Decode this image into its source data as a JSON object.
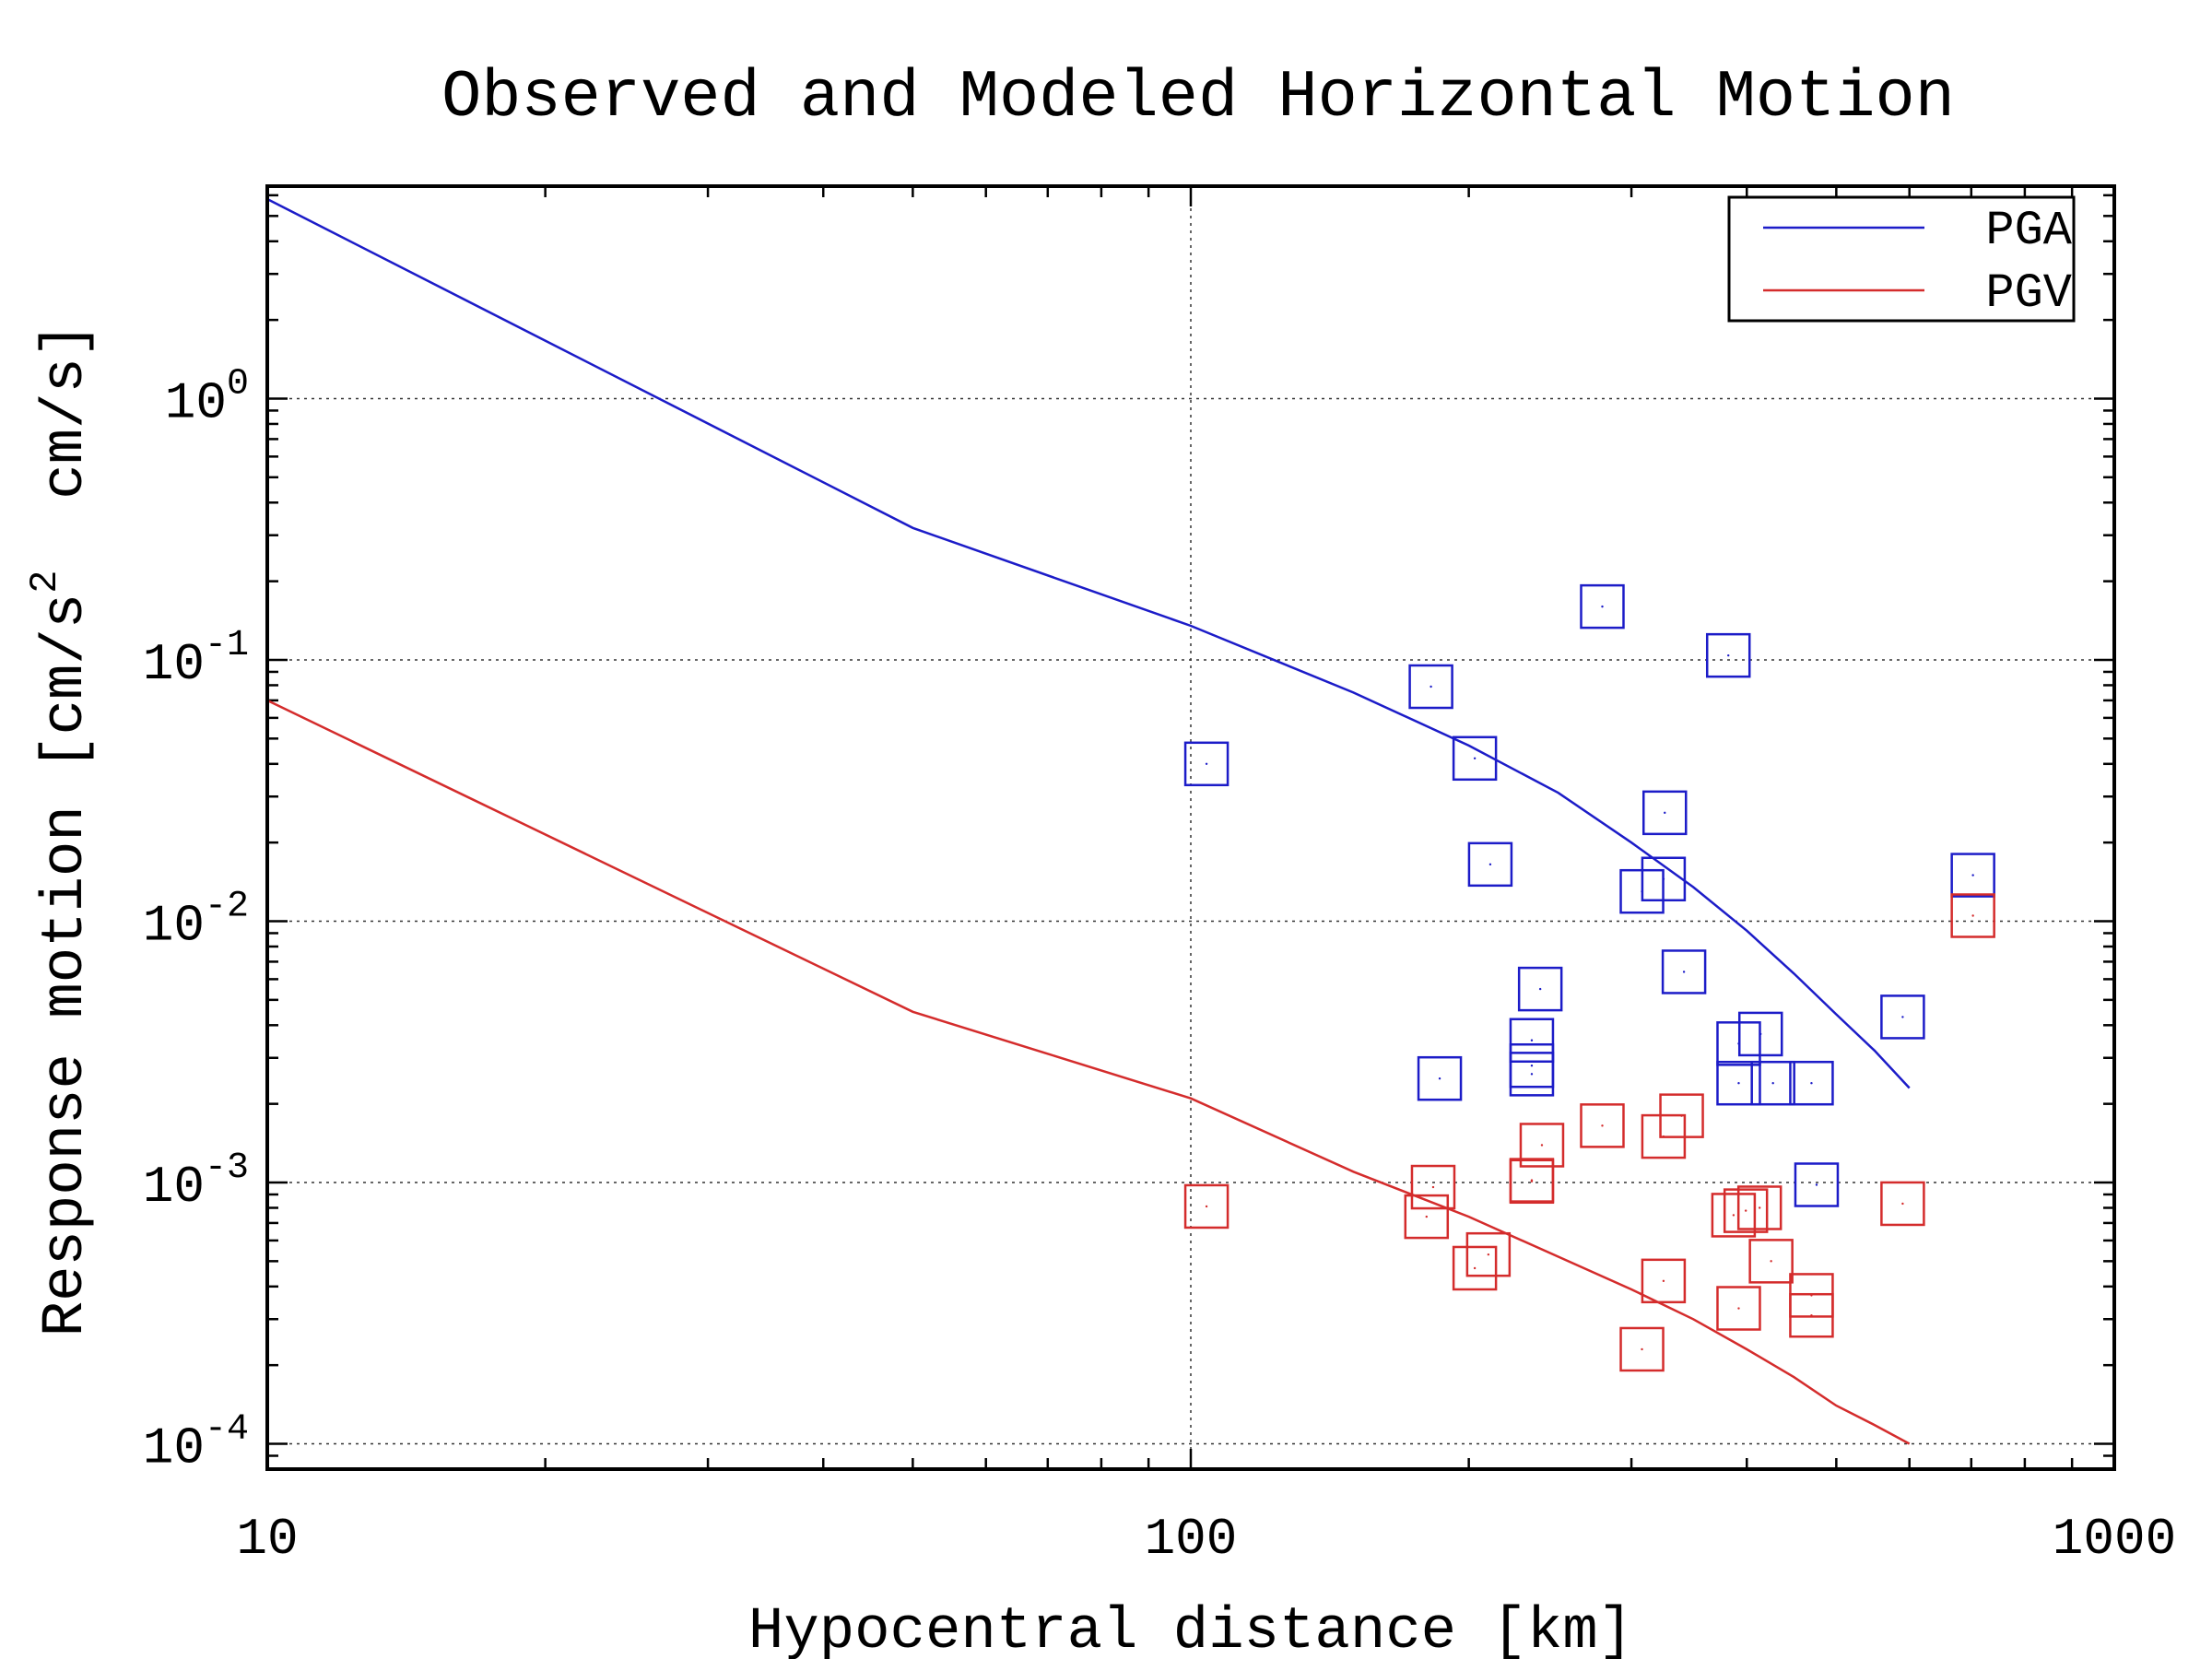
{
  "chart_data": {
    "type": "scatter",
    "title": "Observed and Modeled Horizontal Motion",
    "xlabel": "Hypocentral distance [km]",
    "ylabel": {
      "prefix": "Response motion [cm/s",
      "sup": "2",
      "suffix": "  cm/s]"
    },
    "xscale": "log",
    "yscale": "log",
    "xlim": [
      10,
      1000
    ],
    "ylim": [
      8e-05,
      6.5
    ],
    "x_ticks": [
      {
        "value": 10,
        "label": "10"
      },
      {
        "value": 100,
        "label": "100"
      },
      {
        "value": 1000,
        "label": "1000"
      }
    ],
    "y_ticks": [
      {
        "value": 1,
        "base": "10",
        "exp": "0"
      },
      {
        "value": 0.1,
        "base": "10",
        "exp": "-1"
      },
      {
        "value": 0.01,
        "base": "10",
        "exp": "-2"
      },
      {
        "value": 0.001,
        "base": "10",
        "exp": "-3"
      },
      {
        "value": 0.0001,
        "base": "10",
        "exp": "-4"
      }
    ],
    "grid": true,
    "legend_position": "top-right",
    "series": [
      {
        "name": "PGA",
        "color": "#1c1cc8",
        "line": [
          [
            10,
            5.8
          ],
          [
            50,
            0.32
          ],
          [
            100,
            0.135
          ],
          [
            150,
            0.075
          ],
          [
            200,
            0.047
          ],
          [
            250,
            0.031
          ],
          [
            300,
            0.02
          ],
          [
            350,
            0.0135
          ],
          [
            400,
            0.0092
          ],
          [
            450,
            0.0063
          ],
          [
            500,
            0.0044
          ],
          [
            550,
            0.0032
          ],
          [
            600,
            0.0023
          ]
        ],
        "points": [
          [
            104,
            0.04
          ],
          [
            182,
            0.079
          ],
          [
            203,
            0.042
          ],
          [
            211,
            0.0165
          ],
          [
            279,
            0.16
          ],
          [
            382,
            0.104
          ],
          [
            326,
            0.026
          ],
          [
            325,
            0.0145
          ],
          [
            308,
            0.013
          ],
          [
            342,
            0.0064
          ],
          [
            239,
            0.0055
          ],
          [
            234,
            0.0035
          ],
          [
            234,
            0.0028
          ],
          [
            234,
            0.0026
          ],
          [
            186,
            0.0025
          ],
          [
            392,
            0.0034
          ],
          [
            414,
            0.0037
          ],
          [
            392,
            0.0024
          ],
          [
            427,
            0.0024
          ],
          [
            470,
            0.0024
          ],
          [
            476,
            0.00098
          ],
          [
            590,
            0.0043
          ],
          [
            703,
            0.015
          ]
        ]
      },
      {
        "name": "PGV",
        "color": "#d42c2c",
        "line": [
          [
            10,
            0.07
          ],
          [
            50,
            0.0045
          ],
          [
            100,
            0.0021
          ],
          [
            150,
            0.0011
          ],
          [
            200,
            0.00074
          ],
          [
            250,
            0.00052
          ],
          [
            300,
            0.00039
          ],
          [
            350,
            0.0003
          ],
          [
            400,
            0.00023
          ],
          [
            450,
            0.00018
          ],
          [
            500,
            0.00014
          ],
          [
            550,
            0.000118
          ],
          [
            600,
            0.0001
          ]
        ],
        "points": [
          [
            104,
            0.00081
          ],
          [
            183,
            0.00096
          ],
          [
            180,
            0.00074
          ],
          [
            203,
            0.00047
          ],
          [
            210,
            0.00053
          ],
          [
            240,
            0.00139
          ],
          [
            234,
            0.00102
          ],
          [
            234,
            0.00101
          ],
          [
            279,
            0.00165
          ],
          [
            325,
            0.0015
          ],
          [
            340,
            0.0018
          ],
          [
            325,
            0.00042
          ],
          [
            308,
            0.00023
          ],
          [
            387,
            0.00075
          ],
          [
            399,
            0.00078
          ],
          [
            413,
            0.0008
          ],
          [
            425,
            0.0005
          ],
          [
            392,
            0.00033
          ],
          [
            470,
            0.00037
          ],
          [
            470,
            0.00031
          ],
          [
            590,
            0.00083
          ],
          [
            703,
            0.0105
          ]
        ]
      }
    ]
  }
}
